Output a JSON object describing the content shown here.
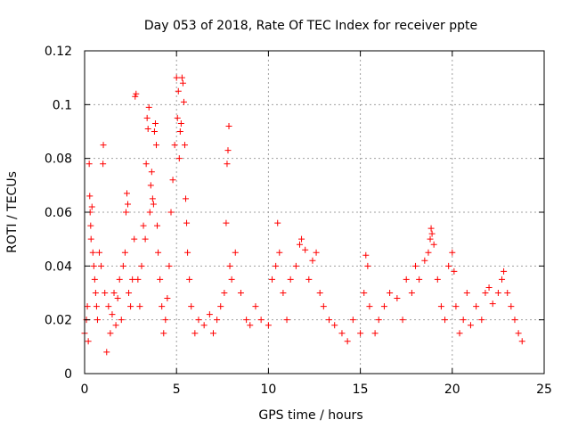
{
  "chart_data": {
    "type": "scatter",
    "title": "Day 053 of 2018, Rate Of TEC Index for receiver ppte",
    "xlabel": "GPS time / hours",
    "ylabel": "ROTI / TECUs",
    "xlim": [
      0,
      25
    ],
    "ylim": [
      0,
      0.12
    ],
    "x_ticks": [
      "0",
      "5",
      "10",
      "15",
      "20",
      "25"
    ],
    "y_ticks": [
      "0",
      "0.02",
      "0.04",
      "0.06",
      "0.08",
      "0.1",
      "0.12"
    ],
    "x_tick_values": [
      0,
      5,
      10,
      15,
      20,
      25
    ],
    "y_tick_values": [
      0,
      0.02,
      0.04,
      0.06,
      0.08,
      0.1,
      0.12
    ],
    "grid": true,
    "marker": "+",
    "color": "#ff0000",
    "series": [
      {
        "name": "ROTI",
        "points": [
          [
            0.0,
            0.015
          ],
          [
            0.1,
            0.02
          ],
          [
            0.15,
            0.025
          ],
          [
            0.2,
            0.012
          ],
          [
            0.25,
            0.078
          ],
          [
            0.28,
            0.066
          ],
          [
            0.3,
            0.06
          ],
          [
            0.33,
            0.055
          ],
          [
            0.35,
            0.05
          ],
          [
            0.4,
            0.062
          ],
          [
            0.45,
            0.045
          ],
          [
            0.5,
            0.04
          ],
          [
            0.55,
            0.035
          ],
          [
            0.6,
            0.03
          ],
          [
            0.65,
            0.025
          ],
          [
            0.7,
            0.02
          ],
          [
            0.8,
            0.045
          ],
          [
            0.9,
            0.04
          ],
          [
            1.0,
            0.078
          ],
          [
            1.02,
            0.085
          ],
          [
            1.1,
            0.03
          ],
          [
            1.2,
            0.008
          ],
          [
            1.3,
            0.025
          ],
          [
            1.4,
            0.015
          ],
          [
            1.5,
            0.022
          ],
          [
            1.6,
            0.03
          ],
          [
            1.7,
            0.018
          ],
          [
            1.8,
            0.028
          ],
          [
            1.9,
            0.035
          ],
          [
            2.0,
            0.02
          ],
          [
            2.1,
            0.04
          ],
          [
            2.2,
            0.045
          ],
          [
            2.25,
            0.06
          ],
          [
            2.3,
            0.067
          ],
          [
            2.35,
            0.063
          ],
          [
            2.4,
            0.03
          ],
          [
            2.5,
            0.025
          ],
          [
            2.6,
            0.035
          ],
          [
            2.7,
            0.05
          ],
          [
            2.75,
            0.103
          ],
          [
            2.8,
            0.104
          ],
          [
            2.9,
            0.035
          ],
          [
            3.0,
            0.025
          ],
          [
            3.1,
            0.04
          ],
          [
            3.2,
            0.055
          ],
          [
            3.3,
            0.05
          ],
          [
            3.35,
            0.078
          ],
          [
            3.4,
            0.095
          ],
          [
            3.45,
            0.091
          ],
          [
            3.5,
            0.099
          ],
          [
            3.55,
            0.06
          ],
          [
            3.6,
            0.07
          ],
          [
            3.65,
            0.075
          ],
          [
            3.7,
            0.065
          ],
          [
            3.75,
            0.063
          ],
          [
            3.8,
            0.09
          ],
          [
            3.85,
            0.093
          ],
          [
            3.9,
            0.085
          ],
          [
            3.95,
            0.055
          ],
          [
            4.0,
            0.045
          ],
          [
            4.1,
            0.035
          ],
          [
            4.2,
            0.025
          ],
          [
            4.3,
            0.015
          ],
          [
            4.4,
            0.02
          ],
          [
            4.5,
            0.028
          ],
          [
            4.6,
            0.04
          ],
          [
            4.7,
            0.06
          ],
          [
            4.8,
            0.072
          ],
          [
            4.9,
            0.085
          ],
          [
            5.0,
            0.11
          ],
          [
            5.05,
            0.095
          ],
          [
            5.1,
            0.105
          ],
          [
            5.15,
            0.08
          ],
          [
            5.2,
            0.09
          ],
          [
            5.25,
            0.093
          ],
          [
            5.3,
            0.11
          ],
          [
            5.35,
            0.108
          ],
          [
            5.4,
            0.101
          ],
          [
            5.45,
            0.085
          ],
          [
            5.5,
            0.065
          ],
          [
            5.55,
            0.056
          ],
          [
            5.6,
            0.045
          ],
          [
            5.7,
            0.035
          ],
          [
            5.8,
            0.025
          ],
          [
            6.0,
            0.015
          ],
          [
            6.2,
            0.02
          ],
          [
            6.5,
            0.018
          ],
          [
            6.8,
            0.022
          ],
          [
            7.0,
            0.015
          ],
          [
            7.2,
            0.02
          ],
          [
            7.4,
            0.025
          ],
          [
            7.6,
            0.03
          ],
          [
            7.7,
            0.056
          ],
          [
            7.75,
            0.078
          ],
          [
            7.8,
            0.083
          ],
          [
            7.85,
            0.092
          ],
          [
            7.9,
            0.04
          ],
          [
            8.0,
            0.035
          ],
          [
            8.2,
            0.045
          ],
          [
            8.5,
            0.03
          ],
          [
            8.8,
            0.02
          ],
          [
            9.0,
            0.018
          ],
          [
            9.3,
            0.025
          ],
          [
            9.6,
            0.02
          ],
          [
            10.0,
            0.018
          ],
          [
            10.2,
            0.035
          ],
          [
            10.4,
            0.04
          ],
          [
            10.5,
            0.056
          ],
          [
            10.6,
            0.045
          ],
          [
            10.8,
            0.03
          ],
          [
            11.0,
            0.02
          ],
          [
            11.2,
            0.035
          ],
          [
            11.5,
            0.04
          ],
          [
            11.7,
            0.048
          ],
          [
            11.8,
            0.05
          ],
          [
            12.0,
            0.046
          ],
          [
            12.2,
            0.035
          ],
          [
            12.4,
            0.042
          ],
          [
            12.6,
            0.045
          ],
          [
            12.8,
            0.03
          ],
          [
            13.0,
            0.025
          ],
          [
            13.3,
            0.02
          ],
          [
            13.6,
            0.018
          ],
          [
            14.0,
            0.015
          ],
          [
            14.3,
            0.012
          ],
          [
            14.6,
            0.02
          ],
          [
            15.0,
            0.015
          ],
          [
            15.2,
            0.03
          ],
          [
            15.3,
            0.044
          ],
          [
            15.4,
            0.04
          ],
          [
            15.5,
            0.025
          ],
          [
            15.8,
            0.015
          ],
          [
            16.0,
            0.02
          ],
          [
            16.3,
            0.025
          ],
          [
            16.6,
            0.03
          ],
          [
            17.0,
            0.028
          ],
          [
            17.3,
            0.02
          ],
          [
            17.5,
            0.035
          ],
          [
            17.8,
            0.03
          ],
          [
            18.0,
            0.04
          ],
          [
            18.2,
            0.035
          ],
          [
            18.5,
            0.042
          ],
          [
            18.7,
            0.045
          ],
          [
            18.8,
            0.05
          ],
          [
            18.85,
            0.054
          ],
          [
            18.9,
            0.052
          ],
          [
            19.0,
            0.048
          ],
          [
            19.2,
            0.035
          ],
          [
            19.4,
            0.025
          ],
          [
            19.6,
            0.02
          ],
          [
            19.8,
            0.04
          ],
          [
            20.0,
            0.045
          ],
          [
            20.1,
            0.038
          ],
          [
            20.2,
            0.025
          ],
          [
            20.4,
            0.015
          ],
          [
            20.6,
            0.02
          ],
          [
            20.8,
            0.03
          ],
          [
            21.0,
            0.018
          ],
          [
            21.3,
            0.025
          ],
          [
            21.6,
            0.02
          ],
          [
            21.8,
            0.03
          ],
          [
            22.0,
            0.032
          ],
          [
            22.2,
            0.026
          ],
          [
            22.5,
            0.03
          ],
          [
            22.7,
            0.035
          ],
          [
            22.8,
            0.038
          ],
          [
            23.0,
            0.03
          ],
          [
            23.2,
            0.025
          ],
          [
            23.4,
            0.02
          ],
          [
            23.6,
            0.015
          ],
          [
            23.8,
            0.012
          ]
        ]
      }
    ]
  }
}
